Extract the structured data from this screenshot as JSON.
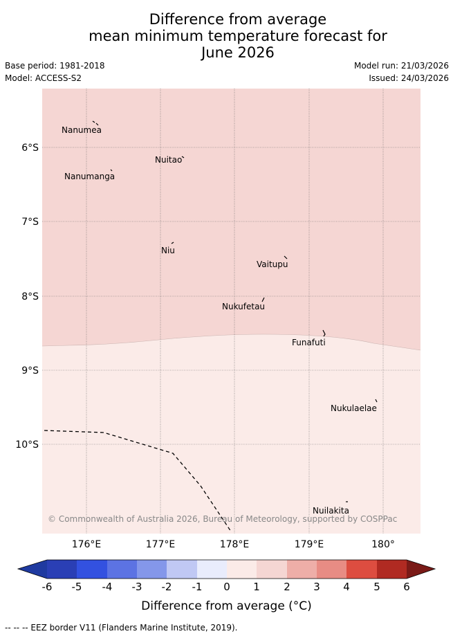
{
  "title": {
    "line1": "Difference from average",
    "line2": "mean minimum temperature forecast for",
    "line3": "June 2026"
  },
  "meta": {
    "base_period": "Base period: 1981-2018",
    "model": "Model: ACCESS-S2",
    "model_run": "Model run: 21/03/2026",
    "issued": "Issued: 24/03/2026"
  },
  "map": {
    "lon_labels": [
      "176°E",
      "177°E",
      "178°E",
      "179°E",
      "180°"
    ],
    "lat_labels": [
      "6°S",
      "7°S",
      "8°S",
      "9°S",
      "10°S"
    ],
    "places": [
      "Nanumea",
      "Nuitao",
      "Nanumanga",
      "Niu",
      "Vaitupu",
      "Nukufetau",
      "Funafuti",
      "Nukulaelae",
      "Nuilakita"
    ],
    "copyright": "© Commonwealth of Australia 2026, Bureau of Meteorology, supported by COSPPac",
    "colors": {
      "band_1_to_2": "#f5d6d3",
      "band_0_to_1": "#fbebe8"
    }
  },
  "colorbar": {
    "ticks": [
      "-6",
      "-5",
      "-4",
      "-3",
      "-2",
      "-1",
      "0",
      "1",
      "2",
      "3",
      "4",
      "5",
      "6"
    ],
    "colors": [
      "#1f3aa0",
      "#2a3fb5",
      "#3351e0",
      "#5c73e3",
      "#8497ea",
      "#c0c8f4",
      "#e9ecfc",
      "#fbebe8",
      "#f5d6d3",
      "#eeaea8",
      "#e88c84",
      "#dd4d40",
      "#b02a22",
      "#7a1a17"
    ],
    "title": "Difference from average (°C)"
  },
  "footnote": "-- -- -- EEZ border V11 (Flanders Marine Institute, 2019)."
}
